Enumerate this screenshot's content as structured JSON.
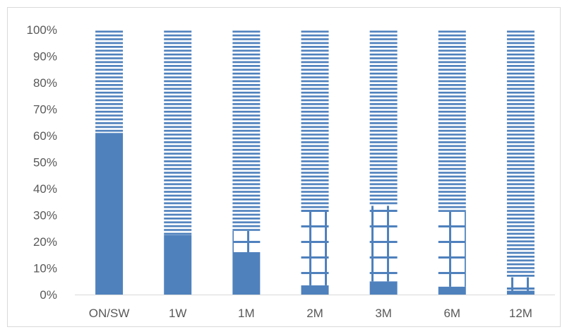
{
  "chart_data": {
    "type": "bar",
    "stacked": "percent",
    "categories": [
      "ON/SW",
      "1W",
      "1M",
      "2M",
      "3M",
      "6M",
      "12M"
    ],
    "series": [
      {
        "pattern": "solid",
        "color": "#4f81bd",
        "values": [
          61,
          22.5,
          16,
          3.5,
          5,
          3,
          1.5
        ]
      },
      {
        "pattern": "grid",
        "color": "#4f81bd",
        "values": [
          0,
          0,
          8,
          28.5,
          28.5,
          28.5,
          5
        ]
      },
      {
        "pattern": "horizontal-stripes",
        "color": "#4f81bd",
        "values": [
          39,
          77.5,
          76,
          68,
          66.5,
          68.5,
          93.5
        ]
      }
    ],
    "ylim": [
      0,
      100
    ],
    "yticks": [
      "0%",
      "10%",
      "20%",
      "30%",
      "40%",
      "50%",
      "60%",
      "70%",
      "80%",
      "90%",
      "100%"
    ],
    "grid": false,
    "legend": "none",
    "title": "",
    "xlabel": "",
    "ylabel": ""
  }
}
